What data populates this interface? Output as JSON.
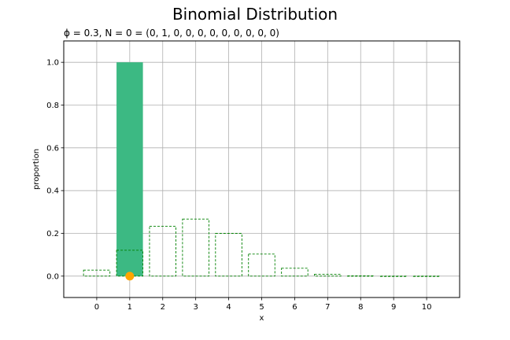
{
  "chart_data": {
    "type": "bar",
    "title": "Binomial Distribution",
    "subtitle": "ϕ = 0.3, N = 0 = (0, 1, 0, 0, 0, 0, 0, 0, 0, 0, 0)",
    "xlabel": "x",
    "ylabel": "proportion",
    "x": [
      0,
      1,
      2,
      3,
      4,
      5,
      6,
      7,
      8,
      9,
      10
    ],
    "xlim": [
      -1,
      11
    ],
    "ylim": [
      -0.1,
      1.1
    ],
    "yticks": [
      0.0,
      0.2,
      0.4,
      0.6,
      0.8,
      1.0
    ],
    "ytick_labels": [
      "0.0",
      "0.2",
      "0.4",
      "0.6",
      "0.8",
      "1.0"
    ],
    "xtick_labels": [
      "0",
      "1",
      "2",
      "3",
      "4",
      "5",
      "6",
      "7",
      "8",
      "9",
      "10"
    ],
    "grid": true,
    "series": [
      {
        "kind": "filled-bar",
        "color": "#3cb983",
        "values": [
          0,
          1.0,
          0,
          0,
          0,
          0,
          0,
          0,
          0,
          0,
          0
        ]
      },
      {
        "kind": "dashed-outline-bar",
        "color": "#008000",
        "values": [
          0.028,
          0.121,
          0.233,
          0.267,
          0.2,
          0.103,
          0.037,
          0.009,
          0.0014,
          0.0001,
          0.0
        ]
      },
      {
        "kind": "marker",
        "color": "#ffa500",
        "points": [
          {
            "x": 1,
            "y": 0
          }
        ]
      }
    ]
  }
}
